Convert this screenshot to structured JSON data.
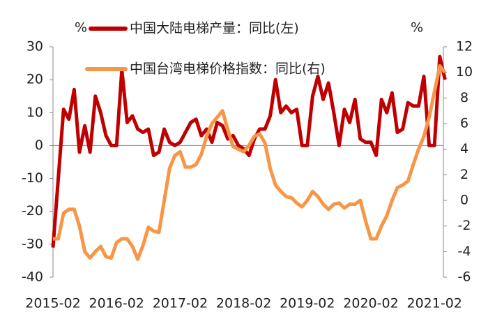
{
  "chart_data": {
    "type": "line",
    "y_label": "%",
    "y2_label": "%",
    "categories": [
      "2015-02",
      null,
      null,
      null,
      null,
      null,
      null,
      null,
      null,
      null,
      null,
      null,
      "2016-02",
      null,
      null,
      null,
      null,
      null,
      null,
      null,
      null,
      null,
      null,
      null,
      "2017-02",
      null,
      null,
      null,
      null,
      null,
      null,
      null,
      null,
      null,
      null,
      null,
      "2018-02",
      null,
      null,
      null,
      null,
      null,
      null,
      null,
      null,
      null,
      null,
      null,
      "2019-02",
      null,
      null,
      null,
      null,
      null,
      null,
      null,
      null,
      null,
      null,
      null,
      "2020-02",
      null,
      null,
      null,
      null,
      null,
      null,
      null,
      null,
      null,
      null,
      null,
      "2021-02",
      null,
      null
    ],
    "series": [
      {
        "name": "中国大陆电梯产量：同比(左)",
        "color": "#c00000",
        "axis": "y",
        "values": [
          -31,
          -10,
          11,
          8,
          17,
          -2,
          6,
          -2,
          15,
          10,
          3,
          0,
          0,
          23,
          7,
          9,
          5,
          4,
          5,
          -3,
          -2,
          5,
          1,
          0,
          1,
          4,
          7,
          8,
          3,
          5,
          1,
          7,
          6,
          2,
          3,
          0,
          -1,
          -3,
          2,
          5,
          5,
          9,
          20,
          10,
          12,
          10,
          11,
          0,
          0,
          15,
          21,
          14,
          19,
          10,
          0,
          11,
          7,
          14,
          2,
          1,
          1,
          -3,
          14,
          10,
          16,
          4,
          5,
          13,
          12,
          12,
          21,
          0,
          0,
          27,
          20
        ]
      },
      {
        "name": "中国台湾电梯价格指数：同比(右)",
        "color": "#f79646",
        "axis": "y2",
        "values": [
          -3,
          -3,
          -1,
          -0.7,
          -0.7,
          -2,
          -4,
          -4.5,
          -4,
          -3.6,
          -4.4,
          -4.5,
          -3.3,
          -3,
          -3,
          -3.6,
          -4.6,
          -3.5,
          -2.1,
          -2.4,
          -2.5,
          0,
          2.5,
          3.5,
          3.8,
          2.6,
          2.6,
          2.8,
          3.6,
          5,
          6,
          6.5,
          7,
          5.5,
          4.2,
          4,
          3.8,
          4.3,
          5,
          5.2,
          4.5,
          2.5,
          1.2,
          0.7,
          0.3,
          0.2,
          -0.2,
          -0.5,
          0,
          0.7,
          0.3,
          -0.3,
          -0.7,
          -0.3,
          -0.2,
          -0.6,
          -0.3,
          -0.3,
          0,
          -1.6,
          -3,
          -3,
          -2,
          -1.2,
          0,
          1,
          1.2,
          1.5,
          2.8,
          4,
          5,
          6.5,
          8.5,
          10.5,
          10
        ]
      }
    ],
    "ylim": [
      -40,
      30
    ],
    "yticks": [
      30,
      20,
      10,
      0,
      -10,
      -20,
      -30,
      -40
    ],
    "y2lim": [
      -6,
      12
    ],
    "y2ticks": [
      12,
      10,
      8,
      6,
      4,
      2,
      0,
      -2,
      -4,
      -6
    ]
  }
}
